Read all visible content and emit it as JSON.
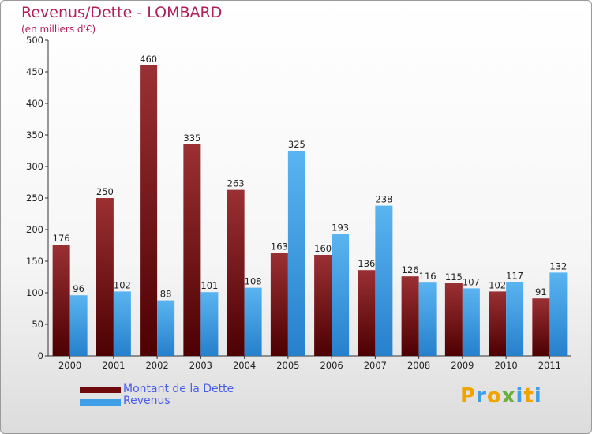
{
  "header": {
    "title": "Revenus/Dette - LOMBARD",
    "subtitle": "(en milliers d'€)"
  },
  "legend": {
    "items": [
      {
        "label": "Montant de la Dette",
        "color": "#6e0a0c"
      },
      {
        "label": "Revenus",
        "color": "#3f9fe6"
      }
    ]
  },
  "logo": {
    "letters": [
      "P",
      "r",
      "o",
      "x",
      "i",
      "t",
      "i"
    ],
    "colors": [
      "#f0a400",
      "#3f9fe6",
      "#f0a400",
      "#6ab03f",
      "#3f9fe6",
      "#f0a400",
      "#3f9fe6"
    ]
  },
  "chart_data": {
    "type": "bar",
    "title": "Revenus/Dette - LOMBARD",
    "subtitle": "(en milliers d'€)",
    "categories": [
      "2000",
      "2001",
      "2002",
      "2003",
      "2004",
      "2005",
      "2006",
      "2007",
      "2008",
      "2009",
      "2010",
      "2011"
    ],
    "series": [
      {
        "name": "Montant de la Dette",
        "color": "#6e0a0c",
        "values": [
          176,
          250,
          460,
          335,
          263,
          163,
          160,
          136,
          126,
          115,
          102,
          91
        ]
      },
      {
        "name": "Revenus",
        "color": "#3f9fe6",
        "values": [
          96,
          102,
          88,
          101,
          108,
          325,
          193,
          238,
          116,
          107,
          117,
          132
        ]
      }
    ],
    "ylim": [
      0,
      500
    ],
    "yticks": [
      0,
      50,
      100,
      150,
      200,
      250,
      300,
      350,
      400,
      450,
      500
    ],
    "grid": false,
    "legend_position": "bottom-left"
  }
}
